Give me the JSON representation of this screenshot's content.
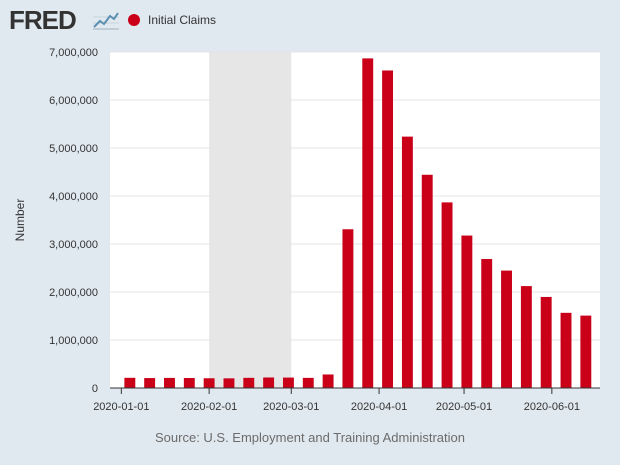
{
  "header": {
    "logo_text": "FRED",
    "logo_icon": "fred-line-graph-icon"
  },
  "legend": {
    "label": "Initial Claims",
    "color": "#c90018"
  },
  "source": "Source: U.S. Employment and Training Administration",
  "chart_data": {
    "type": "bar",
    "ylabel": "Number",
    "xlabel": "",
    "ylim": [
      0,
      7000000
    ],
    "yticks": [
      0,
      1000000,
      2000000,
      3000000,
      4000000,
      5000000,
      6000000,
      7000000
    ],
    "ytick_labels": [
      "0",
      "1,000,000",
      "2,000,000",
      "3,000,000",
      "4,000,000",
      "5,000,000",
      "6,000,000",
      "7,000,000"
    ],
    "xlim": [
      "2019-12-28",
      "2020-06-18"
    ],
    "xticks": [
      "2020-01-01",
      "2020-02-01",
      "2020-03-01",
      "2020-04-01",
      "2020-05-01",
      "2020-06-01"
    ],
    "grid": true,
    "bar_color": "#c90018",
    "shaded_region": [
      "2020-02-01",
      "2020-03-01"
    ],
    "x": [
      "2020-01-04",
      "2020-01-11",
      "2020-01-18",
      "2020-01-25",
      "2020-02-01",
      "2020-02-08",
      "2020-02-15",
      "2020-02-22",
      "2020-02-29",
      "2020-03-07",
      "2020-03-14",
      "2020-03-21",
      "2020-03-28",
      "2020-04-04",
      "2020-04-11",
      "2020-04-18",
      "2020-04-25",
      "2020-05-02",
      "2020-05-09",
      "2020-05-16",
      "2020-05-23",
      "2020-05-30",
      "2020-06-06",
      "2020-06-13"
    ],
    "values": [
      212000,
      207000,
      210000,
      208000,
      203000,
      201000,
      212000,
      219000,
      217000,
      211000,
      282000,
      3307000,
      6867000,
      6615000,
      5237000,
      4442000,
      3867000,
      3176000,
      2687000,
      2446000,
      2123000,
      1897000,
      1566000,
      1508000
    ]
  }
}
